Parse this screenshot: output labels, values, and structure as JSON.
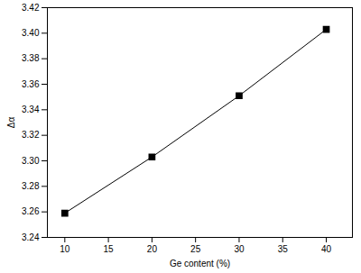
{
  "chart_data": {
    "type": "line",
    "x_label": "Ge content (%)",
    "y_label": "Δα",
    "x": [
      10,
      20,
      30,
      40
    ],
    "series": [
      {
        "color": "#000000",
        "marker": "square",
        "line_style": "solid",
        "values": [
          3.259,
          3.303,
          3.351,
          3.403
        ]
      }
    ],
    "xlim": [
      8,
      43
    ],
    "xticks": [
      10,
      15,
      20,
      25,
      30,
      35,
      40
    ],
    "ylim": [
      3.24,
      3.42
    ],
    "yticks": [
      3.24,
      3.26,
      3.28,
      {
        "value": 3.3,
        "label": "3.30"
      },
      3.32,
      3.34,
      3.36,
      3.38,
      {
        "value": 3.4,
        "label": "3.40"
      },
      3.42
    ],
    "grid": false
  }
}
